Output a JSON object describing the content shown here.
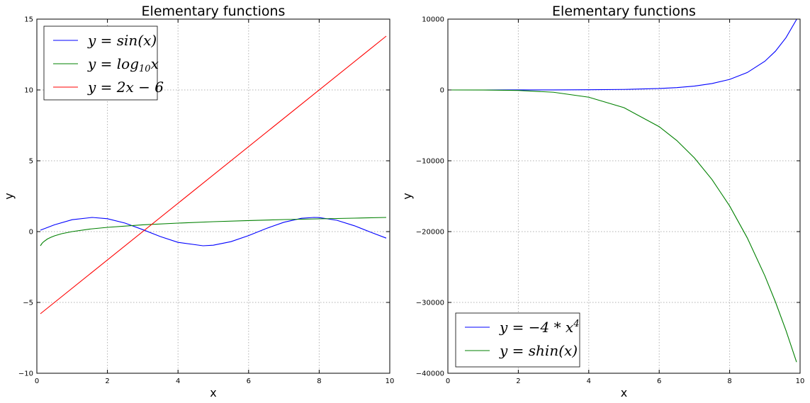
{
  "chart_data": [
    {
      "type": "line",
      "title": "Elementary functions",
      "xlabel": "x",
      "ylabel": "y",
      "xlim": [
        0,
        10
      ],
      "ylim": [
        -10,
        15
      ],
      "xticks": [
        0,
        2,
        4,
        6,
        8,
        10
      ],
      "yticks": [
        -10,
        -5,
        0,
        5,
        10,
        15
      ],
      "grid": true,
      "legend_position": "top-left",
      "series": [
        {
          "name": "y = sin(x)",
          "color": "#0000ff",
          "x": [
            0.1,
            0.5,
            1.0,
            1.57,
            2.0,
            2.5,
            3.0,
            3.5,
            4.0,
            4.71,
            5.0,
            5.5,
            6.0,
            6.5,
            7.0,
            7.5,
            7.85,
            8.0,
            8.5,
            9.0,
            9.5,
            9.9
          ],
          "y": [
            0.1,
            0.48,
            0.84,
            1.0,
            0.91,
            0.6,
            0.14,
            -0.35,
            -0.76,
            -1.0,
            -0.96,
            -0.71,
            -0.28,
            0.22,
            0.66,
            0.94,
            1.0,
            0.99,
            0.8,
            0.41,
            -0.08,
            -0.46
          ]
        },
        {
          "name": "y = log10 x",
          "color": "#008000",
          "x": [
            0.1,
            0.15,
            0.2,
            0.3,
            0.4,
            0.5,
            0.7,
            1.0,
            1.5,
            2.0,
            3.0,
            4.0,
            5.0,
            6.0,
            7.0,
            8.0,
            9.0,
            9.9
          ],
          "y": [
            -1.0,
            -0.82,
            -0.7,
            -0.52,
            -0.4,
            -0.3,
            -0.15,
            0.0,
            0.18,
            0.3,
            0.48,
            0.6,
            0.7,
            0.78,
            0.85,
            0.9,
            0.95,
            1.0
          ]
        },
        {
          "name": "y = 2x − 6",
          "color": "#ff0000",
          "x": [
            0.1,
            9.9
          ],
          "y": [
            -5.8,
            13.8
          ]
        }
      ]
    },
    {
      "type": "line",
      "title": "Elementary functions",
      "xlabel": "x",
      "ylabel": "y",
      "xlim": [
        0,
        10
      ],
      "ylim": [
        -40000,
        10000
      ],
      "xticks": [
        0,
        2,
        4,
        6,
        8,
        10
      ],
      "yticks": [
        -40000,
        -30000,
        -20000,
        -10000,
        0,
        10000
      ],
      "grid": true,
      "legend_position": "bottom-left",
      "series": [
        {
          "name": "y = −4 * x⁴",
          "color": "#0000ff",
          "x": [
            0.0,
            1.0,
            2.0,
            3.0,
            4.0,
            5.0,
            6.0,
            6.5,
            7.0,
            7.5,
            8.0,
            8.5,
            9.0,
            9.3,
            9.6,
            9.9
          ],
          "y": [
            0,
            1,
            4,
            10,
            27,
            74,
            202,
            333,
            548,
            904,
            1490,
            2457,
            4051,
            5468,
            7380,
            9950
          ]
        },
        {
          "name": "y = shin(x)",
          "color": "#008000",
          "x": [
            0.0,
            1.0,
            2.0,
            3.0,
            4.0,
            5.0,
            6.0,
            6.5,
            7.0,
            7.5,
            8.0,
            8.5,
            9.0,
            9.3,
            9.6,
            9.9
          ],
          "y": [
            0,
            -4,
            -64,
            -324,
            -1024,
            -2500,
            -5184,
            -7140,
            -9604,
            -12656,
            -16384,
            -20880,
            -26244,
            -29925,
            -33974,
            -38424
          ]
        }
      ]
    }
  ]
}
